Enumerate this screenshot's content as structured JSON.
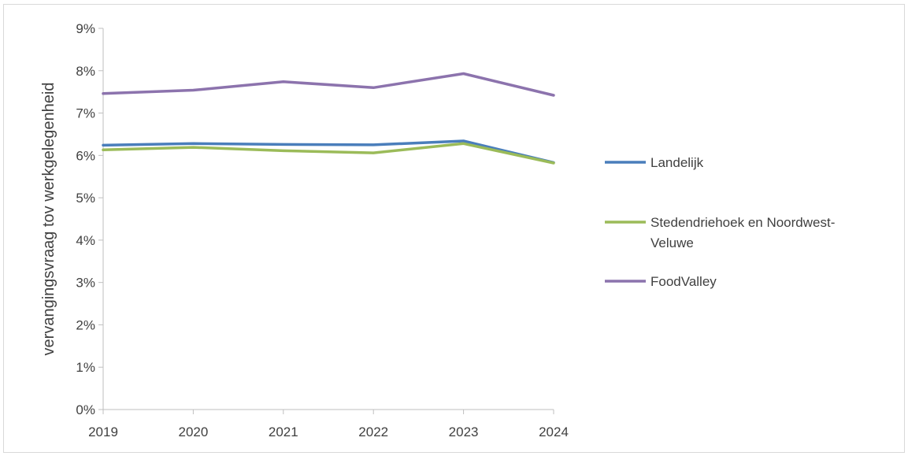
{
  "chart_data": {
    "type": "line",
    "title": "",
    "xlabel": "",
    "ylabel": "vervangingsvraag tov werkgelegenheid",
    "x": [
      "2019",
      "2020",
      "2021",
      "2022",
      "2023",
      "2024"
    ],
    "ylim": [
      0,
      9
    ],
    "yticks": [
      "0%",
      "1%",
      "2%",
      "3%",
      "4%",
      "5%",
      "6%",
      "7%",
      "8%",
      "9%"
    ],
    "grid": false,
    "legend_position": "right",
    "series": [
      {
        "name": "Landelijk",
        "color": "#4a7ebb",
        "values": [
          6.24,
          6.28,
          6.26,
          6.25,
          6.34,
          5.83
        ]
      },
      {
        "name": "Stedendriehoek en Noordwest-Veluwe",
        "color": "#9bbb59",
        "values": [
          6.13,
          6.19,
          6.11,
          6.06,
          6.28,
          5.82
        ]
      },
      {
        "name": "FoodValley",
        "color": "#8c73ad",
        "values": [
          7.46,
          7.54,
          7.74,
          7.6,
          7.93,
          7.42
        ]
      }
    ]
  }
}
